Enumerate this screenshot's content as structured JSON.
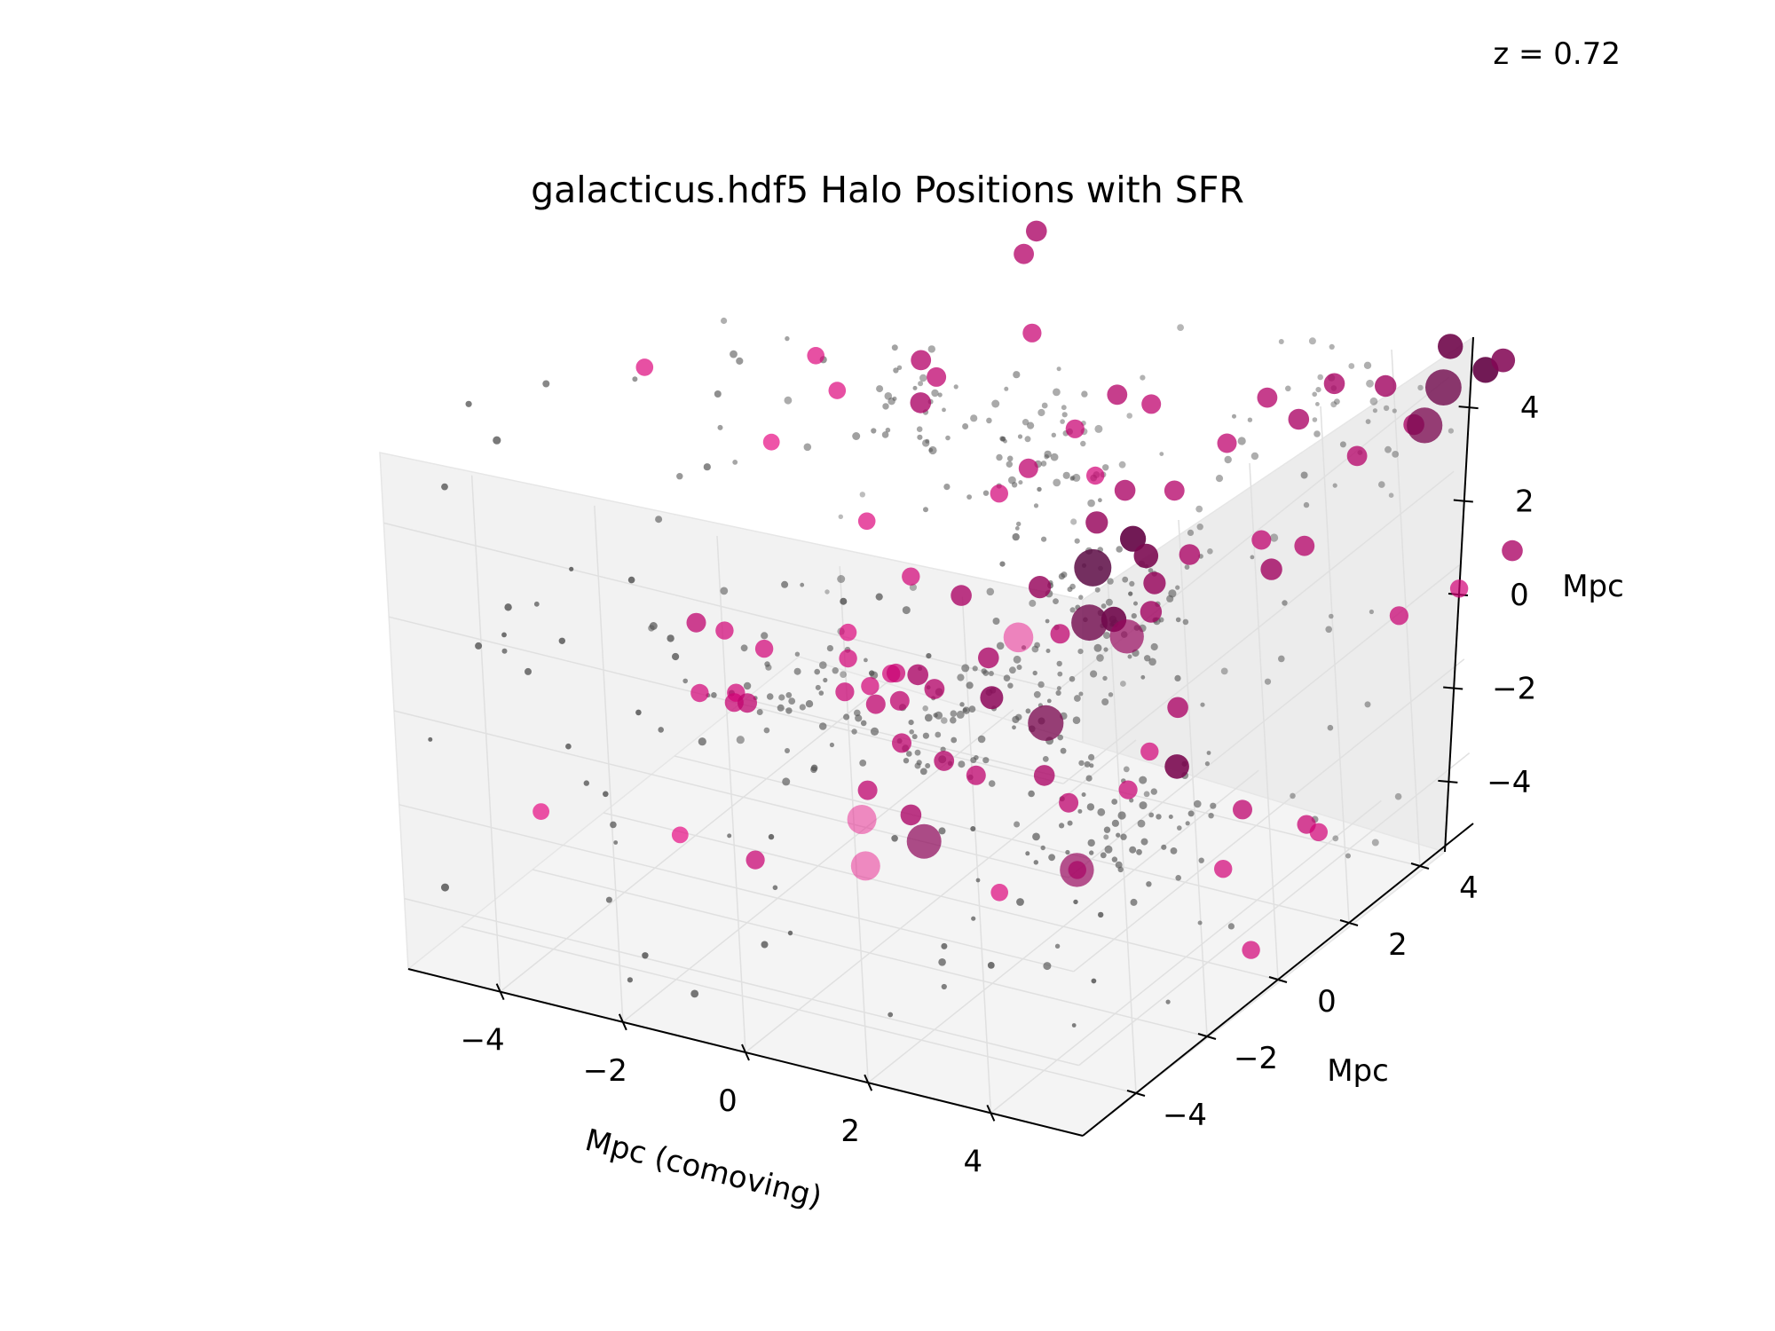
{
  "chart_data": {
    "type": "scatter",
    "title": "galacticus.hdf5 Halo Positions with SFR",
    "annotation": "z = 0.72",
    "xlabel": "Mpc (comoving)",
    "ylabel": "Mpc",
    "zlabel": "Mpc",
    "xlim": [
      -5.5,
      5.5
    ],
    "ylim": [
      -5.5,
      5.5
    ],
    "zlim": [
      -5.5,
      5.5
    ],
    "xticks": [
      "−4",
      "−2",
      "0",
      "2",
      "4"
    ],
    "yticks": [
      "−4",
      "−2",
      "0",
      "2",
      "4"
    ],
    "zticks": [
      "−4",
      "−2",
      "0",
      "2",
      "4"
    ],
    "grid": true,
    "colors": {
      "pane": "#f2f2f2",
      "grid": "#e0e0e0",
      "inactive": "#555555",
      "active": "#e6007e",
      "high_sfr": "#5c0a44"
    },
    "halos_star_forming": [
      {
        "x": -4.6,
        "y": 0.3,
        "z": 4.1,
        "sfr": 0.35
      },
      {
        "x": -5.0,
        "y": -2.5,
        "z": -3.8,
        "sfr": 0.3
      },
      {
        "x": -4.1,
        "y": 0.5,
        "z": -1.3,
        "sfr": 0.5
      },
      {
        "x": -3.7,
        "y": 0.6,
        "z": -1.4,
        "sfr": 0.4
      },
      {
        "x": -3.8,
        "y": 0.0,
        "z": -2.4,
        "sfr": 0.4
      },
      {
        "x": -3.3,
        "y": 0.1,
        "z": -2.5,
        "sfr": 0.45
      },
      {
        "x": -3.2,
        "y": 0.0,
        "z": -2.2,
        "sfr": 0.4
      },
      {
        "x": -2.9,
        "y": -0.2,
        "z": -2.2,
        "sfr": 0.5
      },
      {
        "x": -3.0,
        "y": 0.5,
        "z": -1.5,
        "sfr": 0.4
      },
      {
        "x": -2.6,
        "y": -2.7,
        "z": -3.4,
        "sfr": 0.3
      },
      {
        "x": -3.0,
        "y": 1.0,
        "z": 2.6,
        "sfr": 0.3
      },
      {
        "x": -2.8,
        "y": 2.0,
        "z": 3.9,
        "sfr": 0.35
      },
      {
        "x": -2.6,
        "y": 2.2,
        "z": 3.1,
        "sfr": 0.35
      },
      {
        "x": -1.8,
        "y": 3.2,
        "z": 3.4,
        "sfr": 0.55
      },
      {
        "x": -1.6,
        "y": 2.8,
        "z": 2.8,
        "sfr": 0.6
      },
      {
        "x": -1.5,
        "y": 3.1,
        "z": 3.2,
        "sfr": 0.5
      },
      {
        "x": -1.6,
        "y": 0.5,
        "z": -0.7,
        "sfr": 0.35
      },
      {
        "x": -1.5,
        "y": 0.3,
        "z": -1.1,
        "sfr": 0.4
      },
      {
        "x": -1.4,
        "y": 0.0,
        "z": -1.6,
        "sfr": 0.45
      },
      {
        "x": -1.1,
        "y": 0.2,
        "z": -1.5,
        "sfr": 0.4
      },
      {
        "x": -0.9,
        "y": 0.0,
        "z": -1.7,
        "sfr": 0.5
      },
      {
        "x": -0.8,
        "y": 0.3,
        "z": -1.2,
        "sfr": 0.4
      },
      {
        "x": -0.6,
        "y": 0.1,
        "z": -1.0,
        "sfr": 0.45
      },
      {
        "x": -0.5,
        "y": 0.0,
        "z": -1.5,
        "sfr": 0.5
      },
      {
        "x": -0.3,
        "y": 0.2,
        "z": -1.0,
        "sfr": 0.6
      },
      {
        "x": -0.1,
        "y": 0.3,
        "z": -1.3,
        "sfr": 0.55
      },
      {
        "x": 0.0,
        "y": 1.0,
        "z": 0.3,
        "sfr": 0.6
      },
      {
        "x": 0.7,
        "y": 0.5,
        "z": -0.5,
        "sfr": 0.6
      },
      {
        "x": 1.0,
        "y": 1.5,
        "z": 0.5,
        "sfr": 0.7
      },
      {
        "x": 0.9,
        "y": 0.2,
        "z": -1.1,
        "sfr": 0.75
      },
      {
        "x": 1.6,
        "y": 1.0,
        "z": 0.0,
        "sfr": 0.5
      },
      {
        "x": -0.2,
        "y": 2.5,
        "z": 1.5,
        "sfr": 0.4
      },
      {
        "x": 0.0,
        "y": 3.0,
        "z": 1.8,
        "sfr": 0.5
      },
      {
        "x": 0.5,
        "y": 3.5,
        "z": 2.5,
        "sfr": 0.45
      },
      {
        "x": 1.1,
        "y": 3.0,
        "z": 2.0,
        "sfr": 0.4
      },
      {
        "x": 0.8,
        "y": 4.2,
        "z": 2.9,
        "sfr": 0.55
      },
      {
        "x": 1.7,
        "y": 2.8,
        "z": 2.0,
        "sfr": 0.6
      },
      {
        "x": 1.6,
        "y": 3.8,
        "z": 3.2,
        "sfr": 0.5
      },
      {
        "x": 0.0,
        "y": 3.3,
        "z": 4.5,
        "sfr": 0.45
      },
      {
        "x": -0.8,
        "y": 4.5,
        "z": 5.2,
        "sfr": 0.55
      },
      {
        "x": -1.0,
        "y": 5.2,
        "z": 5.2,
        "sfr": 0.6
      },
      {
        "x": 2.0,
        "y": 1.5,
        "z": 2.2,
        "sfr": 0.7
      },
      {
        "x": 2.4,
        "y": 1.8,
        "z": 1.8,
        "sfr": 0.95
      },
      {
        "x": 2.6,
        "y": 1.8,
        "z": 1.5,
        "sfr": 0.85
      },
      {
        "x": 2.5,
        "y": 1.0,
        "z": 0.6,
        "sfr": 0.9
      },
      {
        "x": 2.9,
        "y": 1.5,
        "z": 1.2,
        "sfr": 0.7
      },
      {
        "x": 3.0,
        "y": 1.2,
        "z": 0.8,
        "sfr": 0.65
      },
      {
        "x": 3.2,
        "y": 2.0,
        "z": 1.6,
        "sfr": 0.6
      },
      {
        "x": 2.7,
        "y": 2.5,
        "z": 2.5,
        "sfr": 0.55
      },
      {
        "x": 3.0,
        "y": 3.5,
        "z": 3.0,
        "sfr": 0.5
      },
      {
        "x": 3.4,
        "y": 4.0,
        "z": 3.8,
        "sfr": 0.55
      },
      {
        "x": 3.9,
        "y": 4.0,
        "z": 3.5,
        "sfr": 0.6
      },
      {
        "x": 4.4,
        "y": 2.0,
        "z": 2.3,
        "sfr": 0.5
      },
      {
        "x": 4.6,
        "y": 1.9,
        "z": 1.8,
        "sfr": 0.65
      },
      {
        "x": 4.8,
        "y": 2.5,
        "z": 2.0,
        "sfr": 0.55
      },
      {
        "x": 3.6,
        "y": 0.8,
        "z": -0.8,
        "sfr": 0.6
      },
      {
        "x": 3.9,
        "y": 0.2,
        "z": -1.6,
        "sfr": 0.85
      },
      {
        "x": 3.4,
        "y": 0.3,
        "z": -1.5,
        "sfr": 0.4
      },
      {
        "x": 4.4,
        "y": 4.2,
        "z": 4.3,
        "sfr": 0.6
      },
      {
        "x": 5.0,
        "y": 4.6,
        "z": 4.2,
        "sfr": 0.65
      },
      {
        "x": 5.2,
        "y": 3.4,
        "z": 3.5,
        "sfr": 0.55
      },
      {
        "x": 5.8,
        "y": 4.0,
        "z": 4.0,
        "sfr": 0.6
      },
      {
        "x": 5.8,
        "y": 5.1,
        "z": 5.0,
        "sfr": 0.9
      },
      {
        "x": 6.3,
        "y": 5.2,
        "z": 4.6,
        "sfr": 0.95
      },
      {
        "x": 6.6,
        "y": 5.2,
        "z": 4.9,
        "sfr": 0.8
      },
      {
        "x": 6.3,
        "y": 2.5,
        "z": 1.0,
        "sfr": 0.45
      },
      {
        "x": 6.4,
        "y": 4.0,
        "z": 0.7,
        "sfr": 0.4
      },
      {
        "x": 6.7,
        "y": 5.0,
        "z": 1.0,
        "sfr": 0.6
      },
      {
        "x": 1.7,
        "y": 0.2,
        "z": -2.5,
        "sfr": 0.6
      },
      {
        "x": 1.0,
        "y": -0.5,
        "z": -2.3,
        "sfr": 0.5
      },
      {
        "x": -0.2,
        "y": -0.5,
        "z": -2.0,
        "sfr": 0.5
      },
      {
        "x": 2.2,
        "y": 0.0,
        "z": -2.8,
        "sfr": 0.5
      },
      {
        "x": 2.2,
        "y": -2.0,
        "z": -3.5,
        "sfr": 0.35
      },
      {
        "x": 3.5,
        "y": -0.5,
        "z": -1.8,
        "sfr": 0.45
      },
      {
        "x": 3.2,
        "y": -1.5,
        "z": -3.0,
        "sfr": 0.4
      },
      {
        "x": 4.7,
        "y": 0.6,
        "z": -2.5,
        "sfr": 0.5
      },
      {
        "x": 5.5,
        "y": 1.0,
        "z": -2.8,
        "sfr": 0.45
      },
      {
        "x": 5.0,
        "y": -0.5,
        "z": -3.0,
        "sfr": 0.4
      },
      {
        "x": 6.0,
        "y": 0.5,
        "z": -2.5,
        "sfr": 0.4
      },
      {
        "x": 6.0,
        "y": -1.5,
        "z": -3.8,
        "sfr": 0.4
      },
      {
        "x": 0.5,
        "y": -1.5,
        "z": -2.7,
        "sfr": 0.6
      },
      {
        "x": -0.5,
        "y": -1.0,
        "z": -2.8,
        "sfr": 0.5
      },
      {
        "x": 0.3,
        "y": -0.2,
        "z": -2.4,
        "sfr": 0.55
      },
      {
        "x": -1.5,
        "y": -2.5,
        "z": -3.7,
        "sfr": 0.45
      },
      {
        "x": -1.8,
        "y": 1.5,
        "z": 1.0,
        "sfr": 0.35
      },
      {
        "x": -1.0,
        "y": 1.3,
        "z": 0.2,
        "sfr": 0.4
      }
    ],
    "halos_large": [
      {
        "x": 2.2,
        "y": 1.0,
        "z": 1.6,
        "sfr": 1.0
      },
      {
        "x": 2.4,
        "y": 0.5,
        "z": 0.8,
        "sfr": 0.9
      },
      {
        "x": 2.2,
        "y": -0.5,
        "z": -0.8,
        "sfr": 0.85
      },
      {
        "x": 3.5,
        "y": -2.0,
        "z": -2.6,
        "sfr": 0.7
      },
      {
        "x": 1.0,
        "y": -2.0,
        "z": -2.8,
        "sfr": 0.75
      },
      {
        "x": 0.5,
        "y": -2.8,
        "z": -3.0,
        "sfr": 0.25
      },
      {
        "x": -0.5,
        "y": -1.2,
        "z": -3.3,
        "sfr": 0.25
      },
      {
        "x": 6.2,
        "y": 4.2,
        "z": 4.8,
        "sfr": 0.9
      },
      {
        "x": 6.1,
        "y": 3.8,
        "z": 4.2,
        "sfr": 0.85
      },
      {
        "x": 0.6,
        "y": 1.5,
        "z": -0.7,
        "sfr": 0.3
      },
      {
        "x": 2.7,
        "y": 1.0,
        "z": 0.3,
        "sfr": 0.7
      }
    ]
  }
}
